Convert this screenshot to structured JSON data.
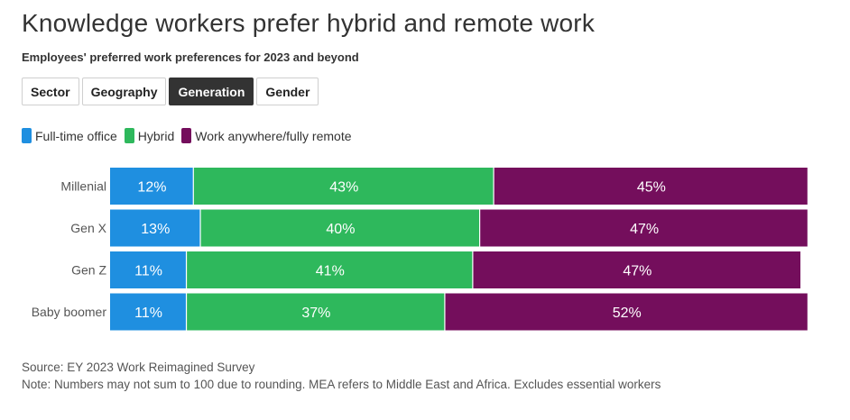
{
  "title": "Knowledge workers prefer hybrid and remote work",
  "subtitle": "Employees' preferred work preferences for 2023 and beyond",
  "tabs": [
    {
      "label": "Sector",
      "active": false
    },
    {
      "label": "Geography",
      "active": false
    },
    {
      "label": "Generation",
      "active": true
    },
    {
      "label": "Gender",
      "active": false
    }
  ],
  "colors": {
    "office": "#1f8fe0",
    "hybrid": "#2eb85c",
    "remote": "#740e5c"
  },
  "chart_data": {
    "type": "bar",
    "orientation": "horizontal",
    "stacked": true,
    "title": "Knowledge workers prefer hybrid and remote work",
    "categories": [
      "Millenial",
      "Gen X",
      "Gen Z",
      "Baby boomer"
    ],
    "series": [
      {
        "name": "Full-time office",
        "color": "#1f8fe0",
        "values": [
          12,
          13,
          11,
          11
        ]
      },
      {
        "name": "Hybrid",
        "color": "#2eb85c",
        "values": [
          43,
          40,
          41,
          37
        ]
      },
      {
        "name": "Work anywhere/fully remote",
        "color": "#740e5c",
        "values": [
          45,
          47,
          47,
          52
        ]
      }
    ],
    "value_suffix": "%",
    "xlim": [
      0,
      100
    ],
    "legend_position": "top-left"
  },
  "footer": {
    "source": "Source: EY 2023 Work Reimagined Survey",
    "note": "Note: Numbers may not sum to 100 due to rounding. MEA refers to Middle East and Africa. Excludes essential workers"
  }
}
